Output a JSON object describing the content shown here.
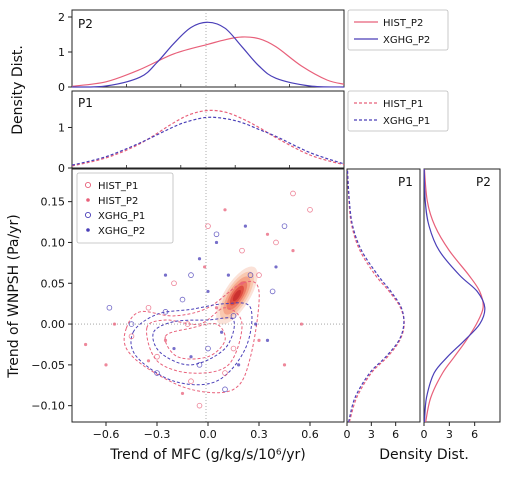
{
  "colors": {
    "hist": "#e8607a",
    "xghg": "#4a3fb8",
    "fill_levels": [
      "#fbe0d5",
      "#f9c5ad",
      "#f4a285",
      "#ec7661",
      "#dd4a3f",
      "#c9302f"
    ],
    "zero_line": "#9a9a9a"
  },
  "chart_data": [
    {
      "panel": "top-P2",
      "type": "line",
      "panel_label": "P2",
      "ylabel": "Density Dist.",
      "xlim": [
        -0.8,
        0.8
      ],
      "ylim": [
        0,
        2.2
      ],
      "yticks": [
        0,
        1,
        2
      ],
      "series": [
        {
          "name": "HIST_P2",
          "style": "solid",
          "color": "#e8607a",
          "x": [
            -0.8,
            -0.6,
            -0.4,
            -0.2,
            0.0,
            0.1,
            0.2,
            0.3,
            0.4,
            0.55,
            0.7,
            0.8
          ],
          "y": [
            0.02,
            0.15,
            0.5,
            0.95,
            1.22,
            1.35,
            1.43,
            1.38,
            1.15,
            0.6,
            0.2,
            0.08
          ]
        },
        {
          "name": "XGHG_P2",
          "style": "solid",
          "color": "#4a3fb8",
          "x": [
            -0.8,
            -0.6,
            -0.4,
            -0.3,
            -0.2,
            -0.1,
            0.0,
            0.1,
            0.2,
            0.3,
            0.4,
            0.6,
            0.8
          ],
          "y": [
            0.0,
            0.03,
            0.28,
            0.7,
            1.25,
            1.7,
            1.85,
            1.68,
            1.15,
            0.6,
            0.25,
            0.03,
            0.0
          ]
        }
      ],
      "legend": [
        "HIST_P2",
        "XGHG_P2"
      ]
    },
    {
      "panel": "top-P1",
      "type": "line",
      "panel_label": "P1",
      "xlim": [
        -0.8,
        0.8
      ],
      "ylim": [
        0,
        1.9
      ],
      "yticks": [
        0,
        1
      ],
      "series": [
        {
          "name": "HIST_P1",
          "style": "dashed",
          "color": "#e8607a",
          "x": [
            -0.8,
            -0.6,
            -0.4,
            -0.2,
            -0.1,
            0.0,
            0.1,
            0.2,
            0.3,
            0.4,
            0.6,
            0.8
          ],
          "y": [
            0.05,
            0.25,
            0.6,
            1.12,
            1.33,
            1.42,
            1.38,
            1.22,
            1.0,
            0.75,
            0.32,
            0.08
          ]
        },
        {
          "name": "XGHG_P1",
          "style": "dashed",
          "color": "#4a3fb8",
          "x": [
            -0.8,
            -0.6,
            -0.4,
            -0.2,
            -0.1,
            0.0,
            0.1,
            0.2,
            0.3,
            0.4,
            0.6,
            0.8
          ],
          "y": [
            0.07,
            0.28,
            0.62,
            1.02,
            1.17,
            1.25,
            1.22,
            1.12,
            0.95,
            0.78,
            0.38,
            0.1
          ]
        }
      ],
      "legend": [
        "HIST_P1",
        "XGHG_P1"
      ]
    },
    {
      "panel": "main-joint",
      "type": "scatter",
      "xlabel": "Trend of MFC (g/kg/s/10⁶/yr)",
      "ylabel": "Trend of WNPSH (Pa/yr)",
      "xlim": [
        -0.8,
        0.8
      ],
      "ylim": [
        -0.12,
        0.19
      ],
      "xticks": [
        -0.6,
        -0.3,
        0.0,
        0.3,
        0.6
      ],
      "xticklabels": [
        "−0.6",
        "−0.3",
        "0.0",
        "0.3",
        "0.6"
      ],
      "yticks": [
        -0.1,
        -0.05,
        0.0,
        0.05,
        0.1,
        0.15
      ],
      "yticklabels": [
        "−0.10",
        "−0.05",
        "0.00",
        "0.05",
        "0.10",
        "0.15"
      ],
      "legend_placement": "top-left",
      "legend": [
        {
          "name": "HIST_P1",
          "marker": "circle-open",
          "color": "#e8607a"
        },
        {
          "name": "HIST_P2",
          "marker": "dot",
          "color": "#e8607a"
        },
        {
          "name": "XGHG_P1",
          "marker": "circle-open",
          "color": "#4a3fb8"
        },
        {
          "name": "XGHG_P2",
          "marker": "dot",
          "color": "#4a3fb8"
        }
      ],
      "filled_kde_HIST_P2": {
        "center": [
          0.17,
          0.035
        ],
        "angle_deg": 58,
        "levels": [
          {
            "a": 0.56,
            "b": 0.215
          },
          {
            "a": 0.46,
            "b": 0.175
          },
          {
            "a": 0.37,
            "b": 0.14
          },
          {
            "a": 0.28,
            "b": 0.105
          },
          {
            "a": 0.19,
            "b": 0.072
          },
          {
            "a": 0.11,
            "b": 0.042
          }
        ]
      },
      "dashed_kde_P1": [
        {
          "series": "HIST_P1",
          "color": "#e8607a",
          "levels": [
            [
              [
                -0.48,
                -0.005
              ],
              [
                -0.4,
                0.015
              ],
              [
                -0.2,
                0.01
              ],
              [
                0.0,
                0.02
              ],
              [
                0.2,
                0.05
              ],
              [
                0.3,
                0.04
              ],
              [
                0.25,
                -0.04
              ],
              [
                0.15,
                -0.08
              ],
              [
                -0.1,
                -0.08
              ],
              [
                -0.35,
                -0.055
              ],
              [
                -0.48,
                -0.03
              ]
            ],
            [
              [
                -0.36,
                -0.005
              ],
              [
                -0.25,
                0.005
              ],
              [
                -0.05,
                0.0
              ],
              [
                0.1,
                0.02
              ],
              [
                0.2,
                0.0
              ],
              [
                0.12,
                -0.05
              ],
              [
                -0.1,
                -0.06
              ],
              [
                -0.3,
                -0.045
              ]
            ],
            [
              [
                -0.25,
                -0.015
              ],
              [
                -0.1,
                -0.005
              ],
              [
                0.05,
                0.0
              ],
              [
                0.1,
                -0.02
              ],
              [
                0.0,
                -0.04
              ],
              [
                -0.18,
                -0.04
              ]
            ]
          ]
        },
        {
          "series": "XGHG_P1",
          "color": "#4a3fb8",
          "levels": [
            [
              [
                -0.44,
                -0.01
              ],
              [
                -0.3,
                0.012
              ],
              [
                -0.1,
                0.018
              ],
              [
                0.1,
                0.025
              ],
              [
                0.25,
                0.02
              ],
              [
                0.22,
                -0.03
              ],
              [
                0.05,
                -0.07
              ],
              [
                -0.2,
                -0.07
              ],
              [
                -0.42,
                -0.04
              ]
            ],
            [
              [
                -0.32,
                -0.01
              ],
              [
                -0.2,
                0.003
              ],
              [
                0.0,
                0.005
              ],
              [
                0.15,
                0.005
              ],
              [
                0.1,
                -0.03
              ],
              [
                -0.1,
                -0.05
              ],
              [
                -0.28,
                -0.035
              ]
            ]
          ]
        }
      ],
      "points": {
        "HIST_P1": [
          [
            -0.45,
            -0.015
          ],
          [
            -0.3,
            -0.04
          ],
          [
            -0.1,
            -0.07
          ],
          [
            -0.05,
            -0.1
          ],
          [
            0.1,
            -0.06
          ],
          [
            0.2,
            0.09
          ],
          [
            0.3,
            0.06
          ],
          [
            0.4,
            0.1
          ],
          [
            0.5,
            0.16
          ],
          [
            -0.2,
            0.05
          ],
          [
            0.0,
            0.12
          ],
          [
            0.15,
            -0.03
          ],
          [
            -0.35,
            0.02
          ],
          [
            0.6,
            0.14
          ],
          [
            -0.12,
            0.0
          ]
        ],
        "HIST_P2": [
          [
            -0.72,
            -0.025
          ],
          [
            -0.55,
            0.0
          ],
          [
            -0.6,
            -0.05
          ],
          [
            -0.35,
            -0.045
          ],
          [
            -0.15,
            -0.085
          ],
          [
            0.05,
            0.02
          ],
          [
            0.2,
            0.05
          ],
          [
            0.35,
            0.11
          ],
          [
            0.5,
            0.09
          ],
          [
            -0.02,
            0.07
          ],
          [
            0.3,
            -0.02
          ],
          [
            0.45,
            -0.05
          ],
          [
            -0.25,
            -0.02
          ],
          [
            0.1,
            0.14
          ],
          [
            0.55,
            0.0
          ]
        ],
        "XGHG_P1": [
          [
            -0.58,
            0.02
          ],
          [
            -0.45,
            0.0
          ],
          [
            -0.25,
            0.015
          ],
          [
            -0.1,
            0.06
          ],
          [
            0.0,
            -0.03
          ],
          [
            0.05,
            0.11
          ],
          [
            0.15,
            0.01
          ],
          [
            0.25,
            0.06
          ],
          [
            0.38,
            0.04
          ],
          [
            -0.3,
            -0.06
          ],
          [
            0.1,
            -0.08
          ],
          [
            -0.15,
            0.03
          ],
          [
            0.45,
            0.12
          ],
          [
            -0.05,
            -0.05
          ]
        ],
        "XGHG_P2": [
          [
            -0.2,
            -0.03
          ],
          [
            -0.05,
            0.08
          ],
          [
            0.05,
            0.1
          ],
          [
            0.12,
            0.06
          ],
          [
            0.22,
            0.12
          ],
          [
            0.28,
            0.0
          ],
          [
            0.35,
            -0.02
          ],
          [
            -0.1,
            -0.04
          ],
          [
            0.18,
            -0.05
          ],
          [
            0.4,
            0.07
          ],
          [
            0.0,
            0.04
          ],
          [
            -0.25,
            0.06
          ],
          [
            0.08,
            -0.01
          ]
        ]
      }
    },
    {
      "panel": "right-P1",
      "type": "line",
      "orientation": "vertical",
      "panel_label": "P1",
      "xlim": [
        0,
        9
      ],
      "xticks": [
        0,
        3,
        6
      ],
      "ylim": [
        -0.12,
        0.19
      ],
      "series": [
        {
          "name": "HIST_P1",
          "style": "dashed",
          "color": "#e8607a",
          "y": [
            -0.12,
            -0.09,
            -0.06,
            -0.04,
            -0.02,
            0.0,
            0.02,
            0.04,
            0.06,
            0.09,
            0.12,
            0.15,
            0.19
          ],
          "x": [
            0.3,
            1.2,
            3.0,
            5.0,
            6.5,
            7.05,
            6.6,
            5.2,
            3.5,
            1.6,
            0.6,
            0.25,
            0.05
          ]
        },
        {
          "name": "XGHG_P1",
          "style": "dashed",
          "color": "#4a3fb8",
          "y": [
            -0.12,
            -0.09,
            -0.06,
            -0.04,
            -0.02,
            0.0,
            0.02,
            0.04,
            0.06,
            0.09,
            0.12,
            0.15,
            0.19
          ],
          "x": [
            0.2,
            1.0,
            2.8,
            4.8,
            6.4,
            7.0,
            6.7,
            5.4,
            3.8,
            1.8,
            0.7,
            0.3,
            0.05
          ]
        }
      ]
    },
    {
      "panel": "right-P2",
      "type": "line",
      "orientation": "vertical",
      "panel_label": "P2",
      "xlim": [
        0,
        9
      ],
      "xticks": [
        0,
        3,
        6
      ],
      "ylim": [
        -0.12,
        0.19
      ],
      "series": [
        {
          "name": "HIST_P2",
          "style": "solid",
          "color": "#e8607a",
          "y": [
            -0.12,
            -0.09,
            -0.06,
            -0.04,
            -0.02,
            0.0,
            0.02,
            0.04,
            0.06,
            0.09,
            0.12,
            0.15,
            0.19
          ],
          "x": [
            0.2,
            0.8,
            2.2,
            3.6,
            5.0,
            6.2,
            7.0,
            6.6,
            5.3,
            3.0,
            1.3,
            0.4,
            0.05
          ]
        },
        {
          "name": "XGHG_P2",
          "style": "solid",
          "color": "#4a3fb8",
          "y": [
            -0.12,
            -0.09,
            -0.06,
            -0.04,
            -0.02,
            0.0,
            0.02,
            0.04,
            0.06,
            0.09,
            0.12,
            0.15,
            0.19
          ],
          "x": [
            0.05,
            0.3,
            1.2,
            2.8,
            4.8,
            6.6,
            7.2,
            6.3,
            4.2,
            1.8,
            0.6,
            0.15,
            0.02
          ]
        }
      ],
      "xlabel": "Density Dist."
    }
  ]
}
